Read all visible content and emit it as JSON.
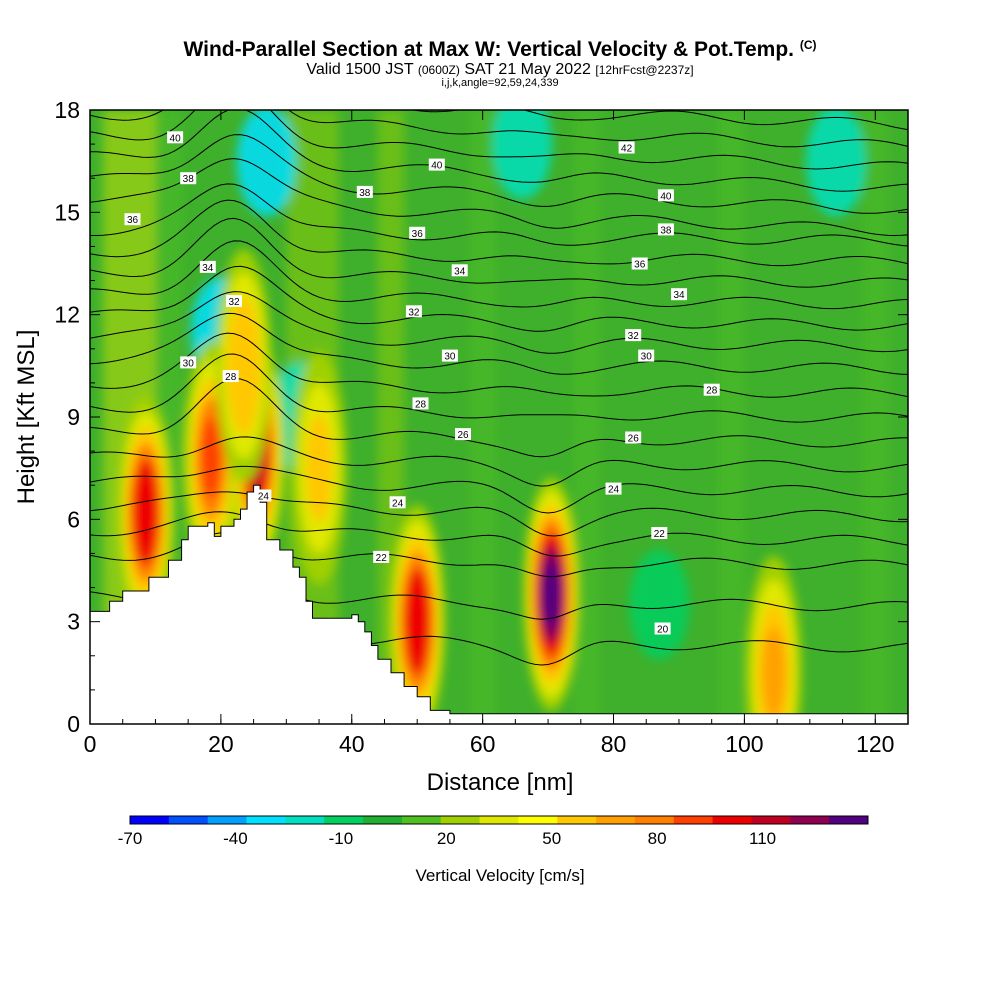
{
  "header": {
    "title": "Wind-Parallel Section at Max W: Vertical Velocity & Pot.Temp.",
    "copyright": "(C)",
    "valid_pre": "Valid 1500 JST",
    "valid_z": "(0600Z)",
    "valid_date": "SAT 21 May 2022",
    "forecast": "[12hrFcst@2237z]",
    "indices": "i,j,k,angle=92,59,24,339"
  },
  "chart_data": {
    "type": "heatmap",
    "xlabel": "Distance [nm]",
    "ylabel": "Height [Kft MSL]",
    "xlim": [
      0,
      125
    ],
    "ylim": [
      0,
      18
    ],
    "x_ticks": [
      "0",
      "20",
      "40",
      "60",
      "80",
      "100",
      "120"
    ],
    "y_ticks": [
      "0",
      "3",
      "6",
      "9",
      "12",
      "15",
      "18"
    ],
    "colorbar": {
      "label": "Vertical Velocity [cm/s]",
      "range": [
        -70,
        140
      ],
      "tick_labels": [
        "-70",
        "-40",
        "-10",
        "20",
        "50",
        "80",
        "110"
      ],
      "colors": [
        "#0000ff",
        "#0050ff",
        "#00a0ff",
        "#00e0ff",
        "#00e0c0",
        "#00d060",
        "#20b030",
        "#50c020",
        "#a0d000",
        "#e0e800",
        "#ffff00",
        "#ffc800",
        "#ffa000",
        "#ff8000",
        "#ff4000",
        "#ee0000",
        "#c00020",
        "#900050",
        "#500080"
      ]
    },
    "terrain": [
      [
        0,
        3.3
      ],
      [
        3,
        3.6
      ],
      [
        5,
        3.9
      ],
      [
        9,
        4.3
      ],
      [
        12,
        4.8
      ],
      [
        14,
        5.4
      ],
      [
        15,
        5.8
      ],
      [
        18,
        5.9
      ],
      [
        19,
        5.5
      ],
      [
        20,
        5.8
      ],
      [
        22,
        6.0
      ],
      [
        23,
        6.3
      ],
      [
        24,
        6.8
      ],
      [
        25,
        7.0
      ],
      [
        26,
        6.5
      ],
      [
        27,
        5.4
      ],
      [
        29,
        5.1
      ],
      [
        31,
        4.6
      ],
      [
        32,
        4.3
      ],
      [
        33,
        3.6
      ],
      [
        34,
        3.1
      ],
      [
        38,
        3.1
      ],
      [
        40,
        3.2
      ],
      [
        41,
        3.0
      ],
      [
        42,
        2.7
      ],
      [
        43,
        2.3
      ],
      [
        44,
        1.9
      ],
      [
        46,
        1.5
      ],
      [
        48,
        1.1
      ],
      [
        50,
        0.8
      ],
      [
        52,
        0.4
      ],
      [
        55,
        0.3
      ],
      [
        125,
        0.3
      ]
    ],
    "updraft_cores": [
      {
        "x": 8.5,
        "y": 6.2,
        "w": 105
      },
      {
        "x": 18.5,
        "y": 7.8,
        "w": 90
      },
      {
        "x": 25.5,
        "y": 8.0,
        "w": 115
      },
      {
        "x": 23.5,
        "y": 10.5,
        "w": 60
      },
      {
        "x": 35,
        "y": 7.5,
        "w": 55
      },
      {
        "x": 50,
        "y": 3.0,
        "w": 100
      },
      {
        "x": 70.5,
        "y": 3.8,
        "w": 135
      },
      {
        "x": 104.5,
        "y": 1.5,
        "w": 70
      }
    ],
    "downdraft_areas": [
      {
        "x": 20,
        "y": 11.5,
        "w": -35
      },
      {
        "x": 27,
        "y": 16.5,
        "w": -30
      },
      {
        "x": 32,
        "y": 9.0,
        "w": -25
      },
      {
        "x": 66,
        "y": 17.0,
        "w": -15
      },
      {
        "x": 87,
        "y": 3.5,
        "w": -12
      },
      {
        "x": 114,
        "y": 16.5,
        "w": -15
      }
    ],
    "contour_labels": [
      {
        "x": 13,
        "y": 17.2,
        "v": "40"
      },
      {
        "x": 15,
        "y": 16.0,
        "v": "38"
      },
      {
        "x": 6.5,
        "y": 14.8,
        "v": "36"
      },
      {
        "x": 18,
        "y": 13.4,
        "v": "34"
      },
      {
        "x": 22,
        "y": 12.4,
        "v": "32"
      },
      {
        "x": 15,
        "y": 10.6,
        "v": "30"
      },
      {
        "x": 21.5,
        "y": 10.2,
        "v": "28"
      },
      {
        "x": 26.5,
        "y": 6.7,
        "v": "24"
      },
      {
        "x": 53,
        "y": 16.4,
        "v": "40"
      },
      {
        "x": 42,
        "y": 15.6,
        "v": "38"
      },
      {
        "x": 50,
        "y": 14.4,
        "v": "36"
      },
      {
        "x": 56.5,
        "y": 13.3,
        "v": "34"
      },
      {
        "x": 49.5,
        "y": 12.1,
        "v": "32"
      },
      {
        "x": 55,
        "y": 10.8,
        "v": "30"
      },
      {
        "x": 50.5,
        "y": 9.4,
        "v": "28"
      },
      {
        "x": 57,
        "y": 8.5,
        "v": "26"
      },
      {
        "x": 47,
        "y": 6.5,
        "v": "24"
      },
      {
        "x": 44.5,
        "y": 4.9,
        "v": "22"
      },
      {
        "x": 82,
        "y": 16.9,
        "v": "42"
      },
      {
        "x": 88,
        "y": 15.5,
        "v": "40"
      },
      {
        "x": 88,
        "y": 14.5,
        "v": "38"
      },
      {
        "x": 84,
        "y": 13.5,
        "v": "36"
      },
      {
        "x": 90,
        "y": 12.6,
        "v": "34"
      },
      {
        "x": 83,
        "y": 11.4,
        "v": "32"
      },
      {
        "x": 85,
        "y": 10.8,
        "v": "30"
      },
      {
        "x": 95,
        "y": 9.8,
        "v": "28"
      },
      {
        "x": 83,
        "y": 8.4,
        "v": "26"
      },
      {
        "x": 80,
        "y": 6.9,
        "v": "24"
      },
      {
        "x": 87,
        "y": 5.6,
        "v": "22"
      },
      {
        "x": 87.5,
        "y": 2.8,
        "v": "20"
      }
    ]
  }
}
